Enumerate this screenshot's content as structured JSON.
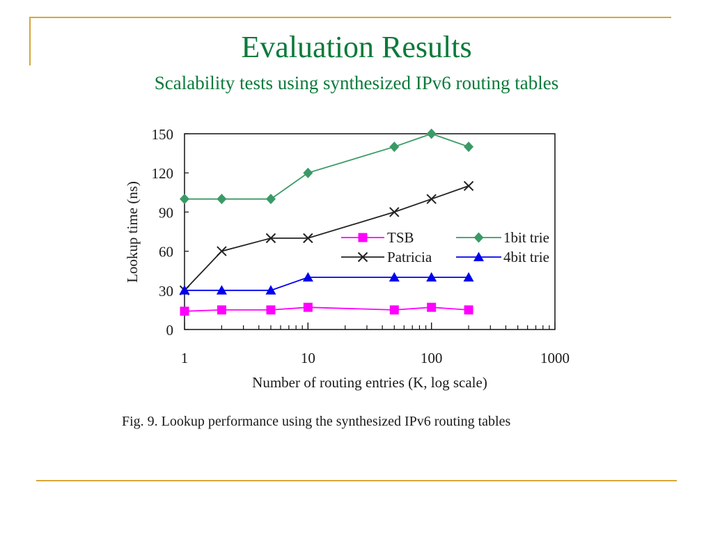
{
  "slide": {
    "title": "Evaluation Results",
    "subtitle": "Scalability tests using synthesized IPv6 routing tables",
    "caption": "Fig. 9.  Lookup performance using the synthesized IPv6 routing tables",
    "accent_color": "#d9a637",
    "title_color": "#0b7a3a"
  },
  "chart_data": {
    "type": "line",
    "xlabel": "Number of routing entries (K, log scale)",
    "ylabel": "Lookup time (ns)",
    "x_scale": "log",
    "xlim": [
      1,
      1000
    ],
    "ylim": [
      0,
      150
    ],
    "x_ticks": [
      1,
      10,
      100,
      1000
    ],
    "x_tick_labels": [
      "1",
      "10",
      "100",
      "1000"
    ],
    "y_ticks": [
      0,
      30,
      60,
      90,
      120,
      150
    ],
    "y_tick_labels": [
      "0",
      "30",
      "60",
      "90",
      "120",
      "150"
    ],
    "grid": false,
    "legend_position": "center-right",
    "x": [
      1,
      2,
      5,
      10,
      50,
      100,
      200
    ],
    "series": [
      {
        "name": "TSB",
        "marker": "square",
        "color": "#ff00ff",
        "values": [
          14,
          15,
          15,
          17,
          15,
          17,
          15
        ]
      },
      {
        "name": "1bit trie",
        "marker": "diamond",
        "color": "#3a9a66",
        "values": [
          100,
          100,
          100,
          120,
          140,
          150,
          140
        ]
      },
      {
        "name": "Patricia",
        "marker": "x",
        "color": "#222222",
        "values": [
          30,
          60,
          70,
          70,
          90,
          100,
          110
        ]
      },
      {
        "name": "4bit trie",
        "marker": "triangle",
        "color": "#0000ee",
        "values": [
          30,
          30,
          30,
          40,
          40,
          40,
          40
        ]
      }
    ]
  }
}
